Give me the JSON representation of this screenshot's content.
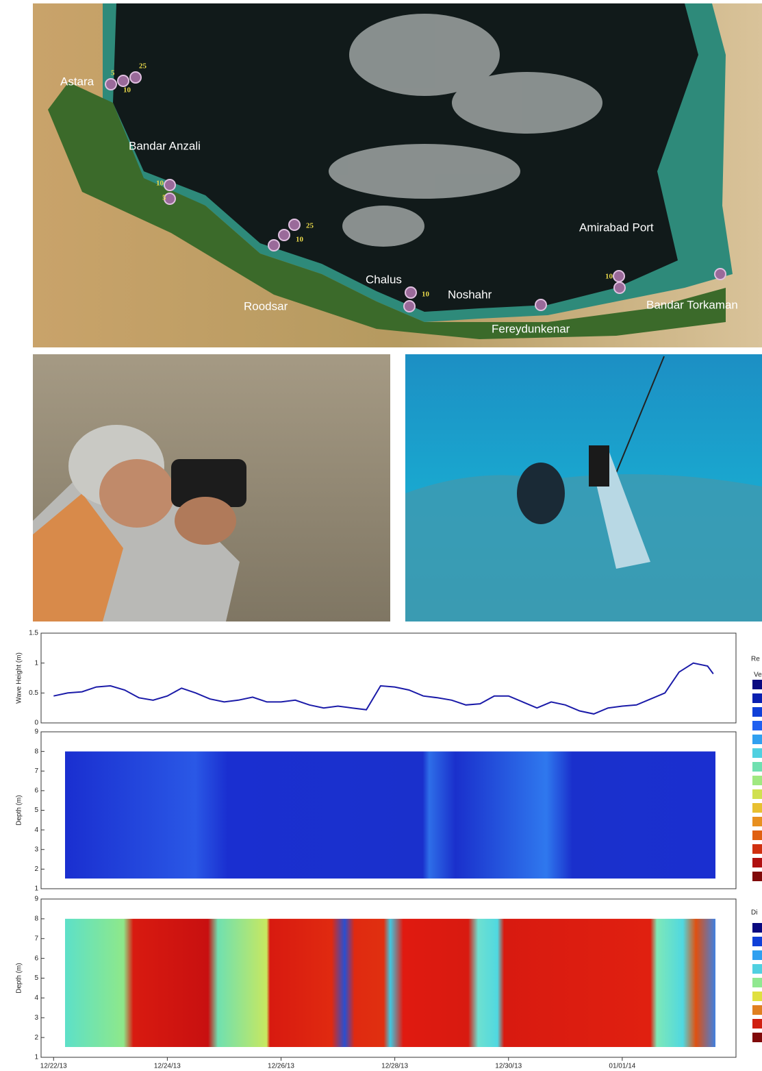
{
  "map": {
    "places": [
      "Astara",
      "Bandar Anzali",
      "Roodsar",
      "Chalus",
      "Noshahr",
      "Fereydunkenar",
      "Amirabad Port",
      "Bandar Torkaman"
    ],
    "markers": [
      "5",
      "25",
      "10",
      "10",
      "5",
      "25",
      "10",
      "10",
      "10"
    ]
  },
  "chart_data": [
    {
      "type": "line",
      "ylabel": "Wave Height (m)",
      "color": "#1a1aa8",
      "xlim": [
        -0.22,
        12
      ],
      "ylim": [
        0,
        1.5
      ],
      "yticks": [
        0,
        0.5,
        1,
        1.5
      ],
      "x": [
        0,
        0.25,
        0.5,
        0.75,
        1,
        1.25,
        1.5,
        1.75,
        2,
        2.25,
        2.5,
        2.75,
        3,
        3.25,
        3.5,
        3.75,
        4,
        4.25,
        4.5,
        4.75,
        5,
        5.25,
        5.5,
        5.75,
        6,
        6.25,
        6.5,
        6.75,
        7,
        7.25,
        7.5,
        7.75,
        8,
        8.25,
        8.5,
        8.75,
        9,
        9.25,
        9.5,
        9.75,
        10,
        10.25,
        10.5,
        10.75,
        11,
        11.25,
        11.5,
        11.6
      ],
      "values": [
        0.45,
        0.5,
        0.52,
        0.6,
        0.62,
        0.55,
        0.42,
        0.38,
        0.45,
        0.58,
        0.5,
        0.4,
        0.35,
        0.38,
        0.43,
        0.35,
        0.35,
        0.38,
        0.3,
        0.25,
        0.28,
        0.25,
        0.22,
        0.62,
        0.6,
        0.55,
        0.45,
        0.42,
        0.38,
        0.3,
        0.32,
        0.45,
        0.45,
        0.35,
        0.25,
        0.35,
        0.3,
        0.2,
        0.15,
        0.25,
        0.28,
        0.3,
        0.4,
        0.5,
        0.85,
        1,
        0.95,
        0.82
      ]
    },
    {
      "type": "heatmap",
      "ylabel": "Depth (m)",
      "colorbar_label": "Re",
      "colorbar_sublabel": "Ve",
      "xlim": [
        -0.22,
        12
      ],
      "ylim": [
        1,
        9
      ],
      "yticks": [
        1,
        2,
        3,
        4,
        5,
        6,
        7,
        8,
        9
      ]
    },
    {
      "type": "heatmap",
      "ylabel": "Depth (m)",
      "colorbar_label": "Di",
      "xlim": [
        -0.22,
        12
      ],
      "ylim": [
        1,
        9
      ],
      "yticks": [
        1,
        2,
        3,
        4,
        5,
        6,
        7,
        8,
        9
      ],
      "xticks": [
        {
          "value": 0,
          "label": "12/22/13"
        },
        {
          "value": 2,
          "label": "12/24/13"
        },
        {
          "value": 4,
          "label": "12/26/13"
        },
        {
          "value": 6,
          "label": "12/28/13"
        },
        {
          "value": 8,
          "label": "12/30/13"
        },
        {
          "value": 10,
          "label": "01/01/14"
        }
      ]
    }
  ]
}
